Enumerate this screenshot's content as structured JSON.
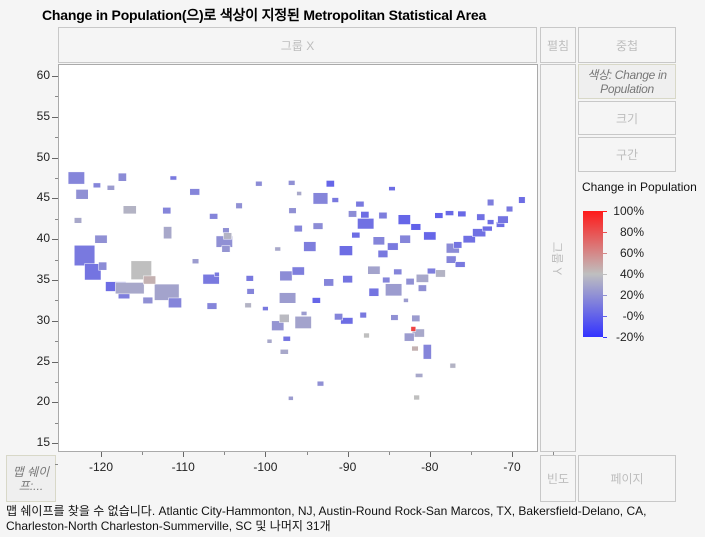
{
  "title": "Change in Population(으)로 색상이 지정된 Metropolitan Statistical Area",
  "zones": {
    "group_x": "그룹 X",
    "wrap": "펼침",
    "overlay": "중첩",
    "color": "색상: Change in Population",
    "size": "크기",
    "interval": "구간",
    "group_y": "그룹 Y",
    "map_shape": "맵 쉐이프:...",
    "freq": "빈도",
    "page": "페이지"
  },
  "footer": "맵 쉐이프를 찾을 수 없습니다. Atlantic City-Hammonton, NJ, Austin-Round Rock-San Marcos, TX, Bakersfield-Delano, CA, Charleston-North Charleston-Summerville, SC 및 나머지 31개",
  "legend": {
    "title": "Change in Population",
    "labels": [
      "100%",
      "80%",
      "60%",
      "40%",
      "20%",
      "-0%",
      "-20%"
    ],
    "colors": {
      "low": "#3333ff",
      "mid": "#bfbfbf",
      "high": "#ff1a1a"
    }
  },
  "chart_data": {
    "type": "map",
    "xlim": [
      -125,
      -66
    ],
    "ylim": [
      13,
      62
    ],
    "xticks": [
      "-120",
      "-110",
      "-100",
      "-90",
      "-80",
      "-70"
    ],
    "yticks": [
      "60",
      "55",
      "50",
      "45",
      "40",
      "35",
      "30",
      "25",
      "20",
      "15"
    ],
    "color_range": [
      -20,
      100
    ],
    "regions": [
      [
        -123,
        47.5,
        2,
        1.5,
        15
      ],
      [
        -122.3,
        45.5,
        1.5,
        1.2,
        20
      ],
      [
        -117.4,
        47.6,
        1,
        1,
        18
      ],
      [
        -116.5,
        43.6,
        1.6,
        1,
        35
      ],
      [
        -111.9,
        40.8,
        1,
        1.5,
        30
      ],
      [
        -112,
        43.5,
        1,
        0.8,
        15
      ],
      [
        -122,
        38,
        2.5,
        2.5,
        10
      ],
      [
        -121,
        36,
        2,
        2,
        8
      ],
      [
        -118.2,
        34.2,
        2.5,
        1.2,
        5
      ],
      [
        -117.2,
        33.4,
        1.4,
        1.4,
        12
      ],
      [
        -116.5,
        34,
        3.5,
        1.4,
        30
      ],
      [
        -115.1,
        36.2,
        2.5,
        2.3,
        40
      ],
      [
        -112,
        33.5,
        3,
        2,
        28
      ],
      [
        -111,
        32.2,
        1.6,
        1.2,
        15
      ],
      [
        -114.3,
        32.5,
        1.2,
        0.8,
        20
      ],
      [
        -119.8,
        36.7,
        1,
        1,
        18
      ],
      [
        -120,
        40,
        1.5,
        1,
        20
      ],
      [
        -114.1,
        35,
        1.5,
        1,
        45
      ],
      [
        -106.6,
        35.1,
        2,
        1.2,
        10
      ],
      [
        -106.5,
        31.8,
        1.2,
        0.8,
        15
      ],
      [
        -105,
        39.7,
        2,
        1.4,
        20
      ],
      [
        -104.8,
        38.8,
        1,
        0.8,
        22
      ],
      [
        -104.6,
        40.4,
        1,
        0.8,
        35
      ],
      [
        -108.6,
        45.8,
        1.2,
        0.8,
        15
      ],
      [
        -106.3,
        42.8,
        1,
        0.7,
        15
      ],
      [
        -104.8,
        41.1,
        0.8,
        0.6,
        20
      ],
      [
        -103.2,
        44.1,
        0.8,
        0.7,
        20
      ],
      [
        -100.8,
        46.8,
        0.8,
        0.6,
        18
      ],
      [
        -96.8,
        46.9,
        0.8,
        0.6,
        20
      ],
      [
        -96.7,
        43.5,
        0.9,
        0.7,
        20
      ],
      [
        -97.5,
        35.5,
        1.5,
        1.2,
        18
      ],
      [
        -96,
        36.1,
        1.5,
        1,
        12
      ],
      [
        -97.3,
        32.8,
        2,
        1.3,
        25
      ],
      [
        -95.4,
        29.8,
        2,
        1.5,
        28
      ],
      [
        -98.5,
        29.4,
        1.5,
        1.2,
        22
      ],
      [
        -97.7,
        30.3,
        1.2,
        1,
        38
      ],
      [
        -101.8,
        33.6,
        0.9,
        0.7,
        15
      ],
      [
        -101.9,
        35.2,
        0.9,
        0.7,
        10
      ],
      [
        -102.1,
        31.9,
        0.8,
        0.6,
        35
      ],
      [
        -97.4,
        27.8,
        0.9,
        0.6,
        8
      ],
      [
        -97.7,
        26.2,
        1,
        0.6,
        30
      ],
      [
        -99.5,
        27.5,
        0.6,
        0.5,
        30
      ],
      [
        -94.6,
        39.1,
        1.5,
        1.2,
        12
      ],
      [
        -93.3,
        45,
        1.8,
        1.4,
        15
      ],
      [
        -92.1,
        46.8,
        1,
        0.8,
        2
      ],
      [
        -96,
        41.3,
        1,
        0.8,
        15
      ],
      [
        -93.6,
        41.6,
        1.2,
        0.8,
        18
      ],
      [
        -90.2,
        38.6,
        1.6,
        1.2,
        5
      ],
      [
        -92.3,
        34.7,
        1.2,
        0.9,
        15
      ],
      [
        -90,
        35.1,
        1.2,
        0.9,
        8
      ],
      [
        -90.1,
        30,
        1.5,
        0.8,
        5
      ],
      [
        -91.1,
        30.5,
        1,
        0.8,
        15
      ],
      [
        -93.8,
        32.5,
        1,
        0.7,
        2
      ],
      [
        -88.1,
        30.7,
        0.8,
        0.7,
        10
      ],
      [
        -86.8,
        33.5,
        1.2,
        1,
        8
      ],
      [
        -86.8,
        36.2,
        1.5,
        1,
        28
      ],
      [
        -85.7,
        38.2,
        1.2,
        0.9,
        10
      ],
      [
        -86.2,
        39.8,
        1.4,
        1,
        15
      ],
      [
        -87.8,
        41.9,
        2,
        1.3,
        6
      ],
      [
        -87.9,
        43,
        1,
        0.8,
        5
      ],
      [
        -89.4,
        43.1,
        1,
        0.8,
        18
      ],
      [
        -83.1,
        42.4,
        1.5,
        1.2,
        2
      ],
      [
        -85.7,
        42.9,
        1,
        0.8,
        12
      ],
      [
        -84.5,
        39.1,
        1.3,
        0.9,
        10
      ],
      [
        -83,
        40,
        1.3,
        1,
        15
      ],
      [
        -81.7,
        41.5,
        1.2,
        0.8,
        0
      ],
      [
        -80,
        40.4,
        1.5,
        1,
        2
      ],
      [
        -84.4,
        33.8,
        2,
        1.5,
        25
      ],
      [
        -81.4,
        28.5,
        1.5,
        1,
        30
      ],
      [
        -82.5,
        28,
        1.2,
        1,
        25
      ],
      [
        -80.3,
        26.2,
        1,
        1.8,
        15
      ],
      [
        -81.8,
        26.6,
        0.8,
        0.6,
        45
      ],
      [
        -82,
        29,
        0.6,
        0.6,
        85
      ],
      [
        -81.7,
        30.3,
        1,
        0.8,
        25
      ],
      [
        -80.9,
        35.2,
        1.5,
        1,
        30
      ],
      [
        -78.7,
        35.8,
        1.2,
        0.9,
        35
      ],
      [
        -79.8,
        36.1,
        1,
        0.7,
        12
      ],
      [
        -80.9,
        34,
        1,
        0.8,
        20
      ],
      [
        -82.4,
        34.8,
        1,
        0.8,
        20
      ],
      [
        -77.4,
        37.5,
        1.2,
        0.9,
        15
      ],
      [
        -76.3,
        36.9,
        1.2,
        0.7,
        10
      ],
      [
        -77.2,
        38.9,
        1.6,
        1.2,
        18
      ],
      [
        -76.6,
        39.3,
        1,
        0.8,
        8
      ],
      [
        -75.2,
        40,
        1.5,
        0.9,
        6
      ],
      [
        -74,
        40.8,
        1.6,
        1,
        6
      ],
      [
        -73,
        41.3,
        1.2,
        0.6,
        5
      ],
      [
        -71.4,
        41.8,
        1,
        0.7,
        5
      ],
      [
        -71.1,
        42.4,
        1.3,
        0.9,
        8
      ],
      [
        -72.6,
        42.1,
        0.8,
        0.6,
        5
      ],
      [
        -70.3,
        43.7,
        0.8,
        0.7,
        10
      ],
      [
        -73.8,
        42.7,
        1,
        0.8,
        6
      ],
      [
        -76.1,
        43.1,
        1,
        0.7,
        3
      ],
      [
        -77.6,
        43.2,
        1,
        0.6,
        3
      ],
      [
        -78.9,
        42.9,
        1,
        0.7,
        0
      ],
      [
        -68.8,
        44.8,
        0.8,
        0.8,
        5
      ],
      [
        -72.6,
        44.5,
        0.8,
        0.8,
        12
      ],
      [
        -84.3,
        30.4,
        0.9,
        0.7,
        20
      ],
      [
        -85.3,
        35,
        0.9,
        0.7,
        15
      ],
      [
        -83.9,
        36,
        1,
        0.7,
        15
      ],
      [
        -95.9,
        45.6,
        0.6,
        0.5,
        30
      ],
      [
        -88.5,
        44.3,
        1,
        0.7,
        10
      ],
      [
        -82.9,
        32.5,
        0.6,
        0.5,
        25
      ],
      [
        -118.8,
        46.3,
        0.9,
        0.6,
        25
      ],
      [
        -120.5,
        46.6,
        0.9,
        0.6,
        15
      ],
      [
        -108.5,
        37.3,
        0.8,
        0.6,
        25
      ],
      [
        -98.5,
        38.8,
        0.7,
        0.5,
        30
      ],
      [
        -89,
        40.5,
        1,
        0.7,
        5
      ],
      [
        -91.5,
        44.8,
        0.8,
        0.6,
        10
      ],
      [
        -84.6,
        46.2,
        0.8,
        0.5,
        5
      ],
      [
        -111.2,
        47.5,
        0.8,
        0.5,
        10
      ],
      [
        -100,
        31.5,
        0.7,
        0.5,
        10
      ],
      [
        -105.9,
        35.7,
        0.6,
        0.5,
        10
      ],
      [
        -95.3,
        30.9,
        0.7,
        0.5,
        25
      ],
      [
        -87.7,
        28.2,
        0.7,
        0.6,
        40
      ],
      [
        -81.3,
        23.3,
        0.9,
        0.5,
        30
      ],
      [
        -93.3,
        22.3,
        0.8,
        0.6,
        20
      ],
      [
        -96.9,
        20.5,
        0.6,
        0.5,
        25
      ],
      [
        -81.6,
        20.6,
        0.7,
        0.6,
        40
      ],
      [
        -77.2,
        24.5,
        0.7,
        0.6,
        35
      ],
      [
        -122.8,
        42.3,
        0.9,
        0.7,
        30
      ]
    ]
  }
}
